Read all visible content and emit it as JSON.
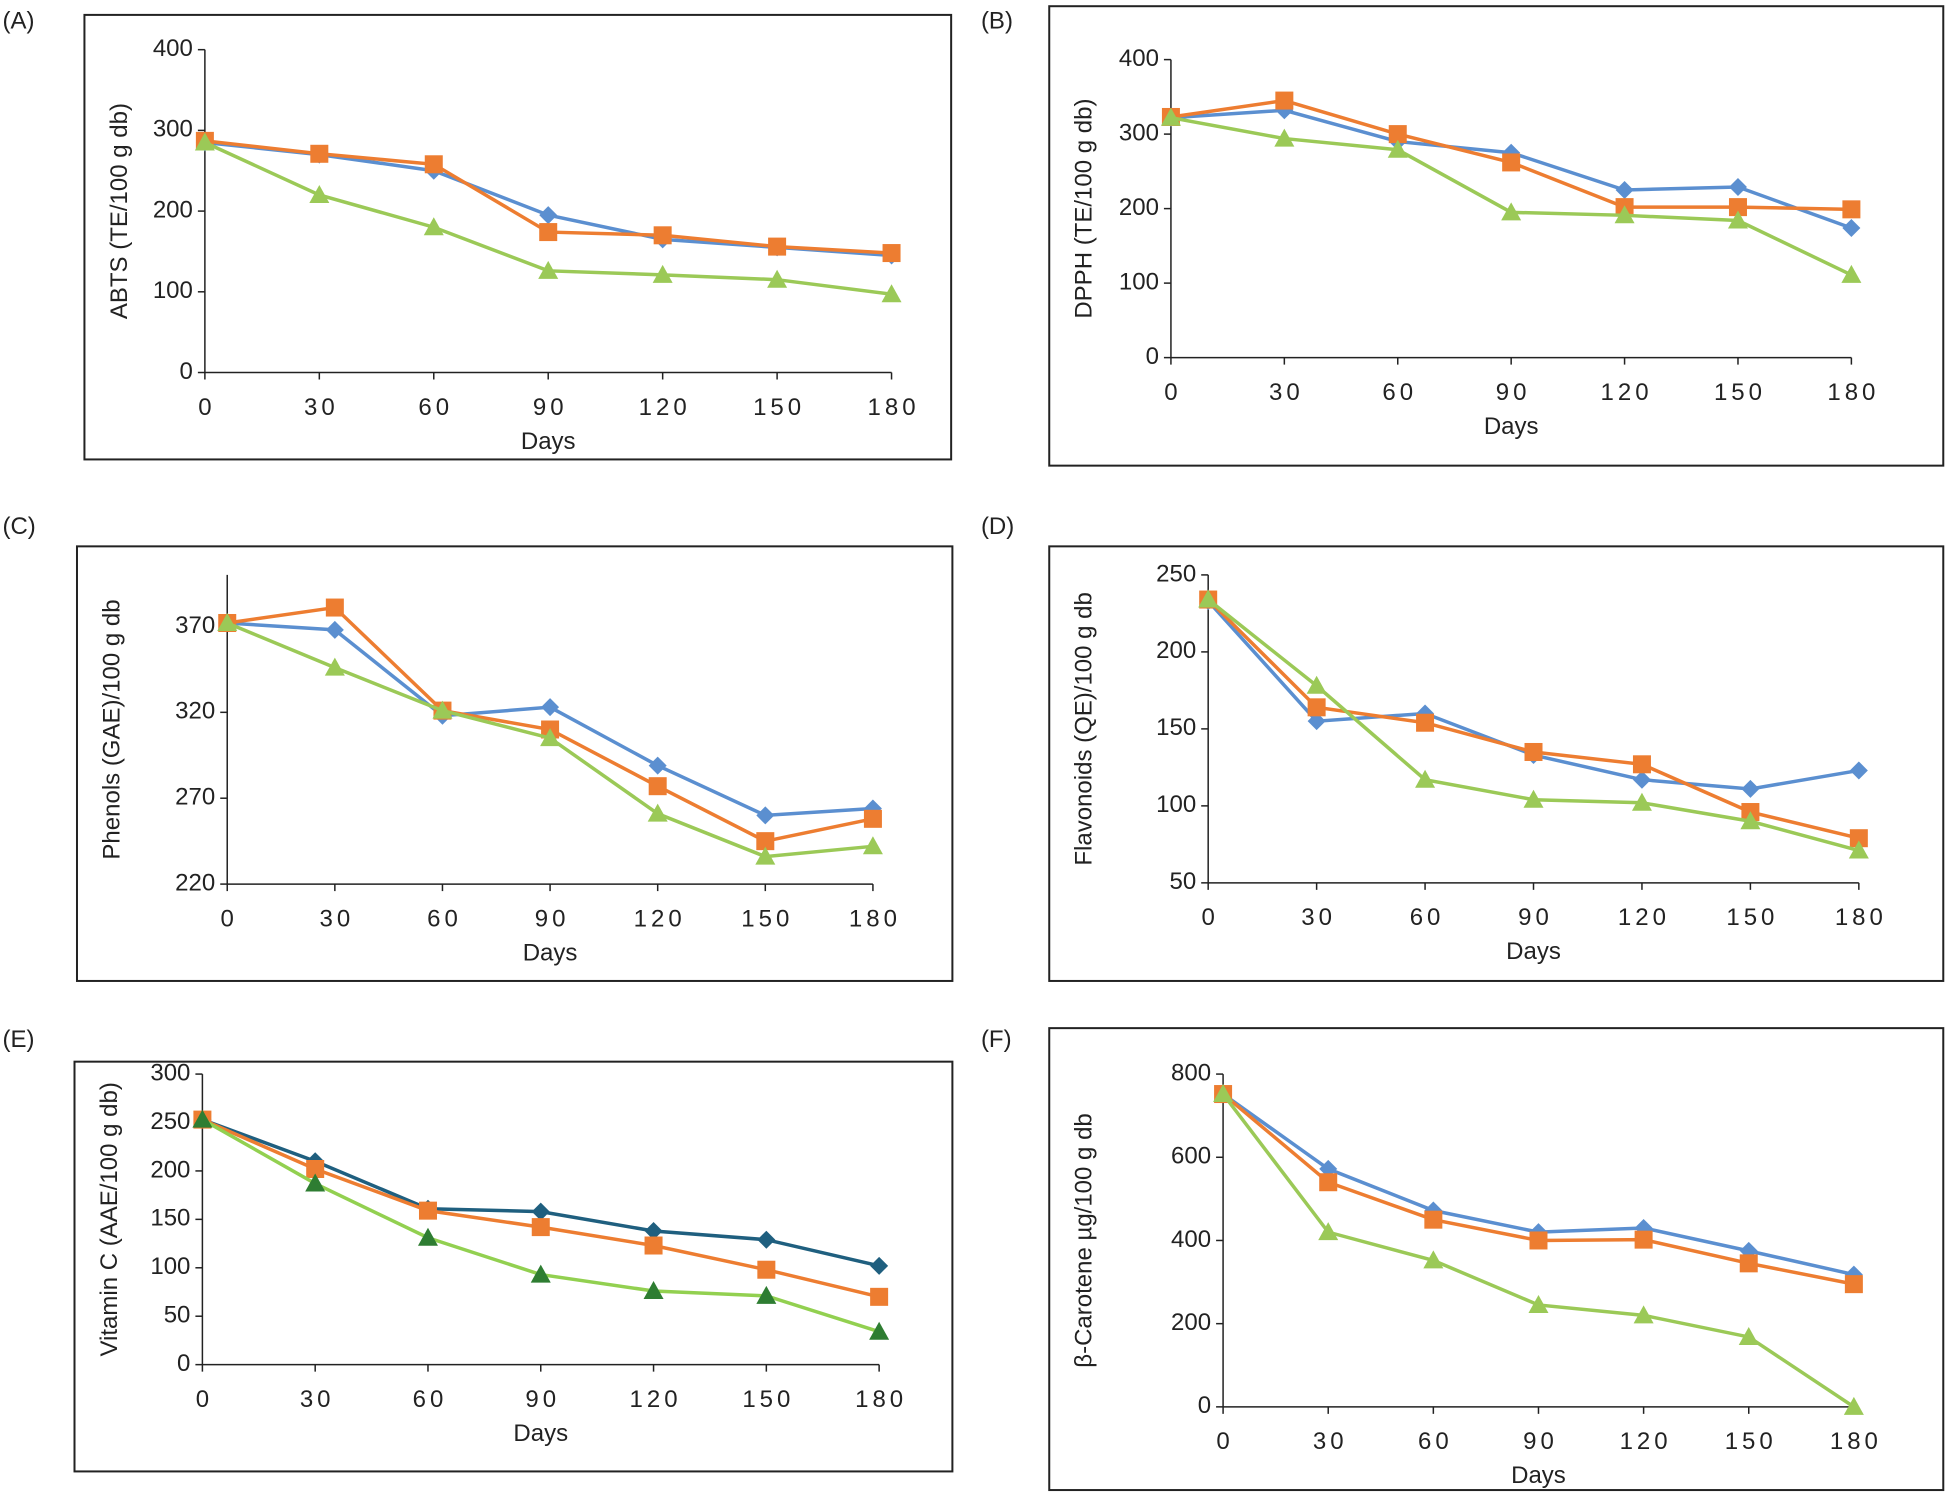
{
  "chart_data": [
    {
      "type": "line",
      "panel_label": "(A)",
      "y_label": "ABTS (TE/100 g db)",
      "x_label": "Days",
      "x": [
        0,
        30,
        60,
        90,
        120,
        150,
        180
      ],
      "xlim": [
        0,
        180
      ],
      "xticks": [
        0,
        30,
        60,
        90,
        120,
        150,
        180
      ],
      "ylim": [
        0,
        400
      ],
      "yticks": [
        0,
        100,
        200,
        300,
        400
      ],
      "series": [
        {
          "color": "#5b8fd0",
          "marker": "diamond",
          "values": [
            285,
            270,
            250,
            195,
            165,
            155,
            145
          ]
        },
        {
          "color": "#ed7d31",
          "marker": "square",
          "values": [
            287,
            271,
            258,
            174,
            170,
            156,
            148
          ]
        },
        {
          "color": "#9bc957",
          "marker": "triangle",
          "values": [
            285,
            220,
            180,
            126,
            121,
            115,
            97
          ]
        }
      ]
    },
    {
      "type": "line",
      "panel_label": "(B)",
      "y_label": "DPPH (TE/100 g db)",
      "x_label": "Days",
      "x": [
        0,
        30,
        60,
        90,
        120,
        150,
        180
      ],
      "xlim": [
        0,
        180
      ],
      "xticks": [
        0,
        30,
        60,
        90,
        120,
        150,
        180
      ],
      "ylim": [
        0,
        400
      ],
      "yticks": [
        0,
        100,
        200,
        300,
        400
      ],
      "series": [
        {
          "color": "#5b8fd0",
          "marker": "diamond",
          "values": [
            322,
            332,
            290,
            275,
            225,
            229,
            174
          ]
        },
        {
          "color": "#ed7d31",
          "marker": "square",
          "values": [
            323,
            345,
            300,
            262,
            202,
            202,
            199
          ]
        },
        {
          "color": "#9bc957",
          "marker": "triangle",
          "values": [
            322,
            294,
            279,
            195,
            191,
            184,
            111
          ]
        }
      ]
    },
    {
      "type": "line",
      "panel_label": "(C)",
      "y_label": "Phenols (GAE)/100 g db",
      "x_label": "Days",
      "x": [
        0,
        30,
        60,
        90,
        120,
        150,
        180
      ],
      "xlim": [
        0,
        180
      ],
      "xticks": [
        0,
        30,
        60,
        90,
        120,
        150,
        180
      ],
      "ylim": [
        220,
        400
      ],
      "yticks": [
        220,
        270,
        320,
        370
      ],
      "series": [
        {
          "color": "#5b8fd0",
          "marker": "diamond",
          "values": [
            372,
            368,
            318,
            323,
            289,
            260,
            264
          ]
        },
        {
          "color": "#ed7d31",
          "marker": "square",
          "values": [
            372,
            381,
            321,
            310,
            277,
            245,
            258
          ]
        },
        {
          "color": "#9bc957",
          "marker": "triangle",
          "values": [
            372,
            346,
            321,
            305,
            261,
            236,
            242
          ]
        }
      ]
    },
    {
      "type": "line",
      "panel_label": "(D)",
      "y_label": "Flavonoids (QE)/100 g db",
      "x_label": "Days",
      "x": [
        0,
        30,
        60,
        90,
        120,
        150,
        180
      ],
      "xlim": [
        0,
        180
      ],
      "xticks": [
        0,
        30,
        60,
        90,
        120,
        150,
        180
      ],
      "ylim": [
        50,
        250
      ],
      "yticks": [
        50,
        100,
        150,
        200,
        250
      ],
      "series": [
        {
          "color": "#5b8fd0",
          "marker": "diamond",
          "values": [
            233,
            155,
            160,
            133,
            117,
            111,
            123
          ]
        },
        {
          "color": "#ed7d31",
          "marker": "square",
          "values": [
            234,
            164,
            154,
            135,
            127,
            96,
            79
          ]
        },
        {
          "color": "#9bc957",
          "marker": "triangle",
          "values": [
            234,
            178,
            117,
            104,
            102,
            90,
            71
          ]
        }
      ]
    },
    {
      "type": "line",
      "panel_label": "(E)",
      "y_label": "Vitamin C (AAE/100 g db)",
      "x_label": "Days",
      "x": [
        0,
        30,
        60,
        90,
        120,
        150,
        180
      ],
      "xlim": [
        0,
        180
      ],
      "xticks": [
        0,
        30,
        60,
        90,
        120,
        150,
        180
      ],
      "ylim": [
        0,
        300
      ],
      "yticks": [
        0,
        50,
        100,
        150,
        200,
        250,
        300
      ],
      "series": [
        {
          "color": "#1f5f7f",
          "marker": "diamond",
          "values": [
            253,
            210,
            161,
            158,
            138,
            129,
            102
          ]
        },
        {
          "color": "#ed7d31",
          "marker": "square",
          "values": [
            253,
            202,
            159,
            142,
            123,
            98,
            70
          ]
        },
        {
          "color": "#92d050",
          "marker_color": "#2e7d32",
          "marker": "triangle",
          "values": [
            253,
            187,
            131,
            93,
            76,
            71,
            34
          ]
        }
      ]
    },
    {
      "type": "line",
      "panel_label": "(F)",
      "y_label": "β-Carotene µg/100 g db",
      "x_label": "Days",
      "x": [
        0,
        30,
        60,
        90,
        120,
        150,
        180
      ],
      "xlim": [
        0,
        180
      ],
      "xticks": [
        0,
        30,
        60,
        90,
        120,
        150,
        180
      ],
      "ylim": [
        0,
        800
      ],
      "yticks": [
        0,
        200,
        400,
        600,
        800
      ],
      "series": [
        {
          "color": "#5b8fd0",
          "marker": "diamond",
          "values": [
            752,
            572,
            472,
            420,
            430,
            375,
            318
          ]
        },
        {
          "color": "#ed7d31",
          "marker": "square",
          "values": [
            752,
            540,
            450,
            400,
            402,
            345,
            295
          ]
        },
        {
          "color": "#9bc957",
          "marker": "triangle",
          "values": [
            752,
            420,
            352,
            245,
            220,
            168,
            0
          ]
        }
      ]
    }
  ]
}
